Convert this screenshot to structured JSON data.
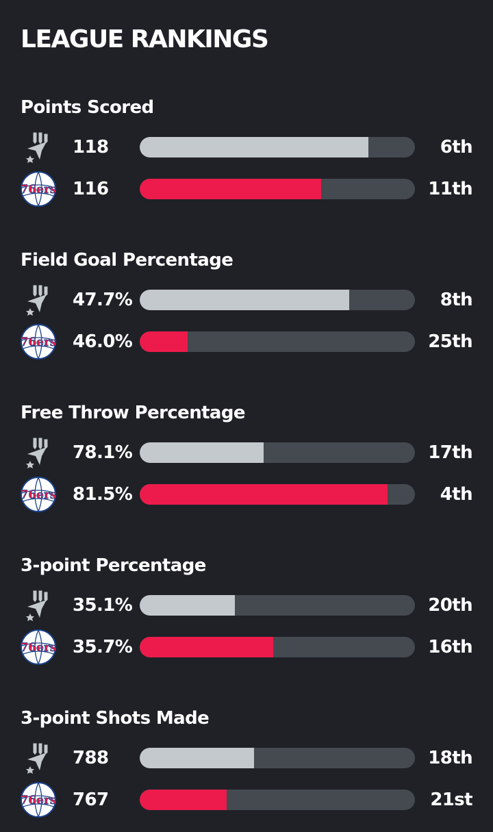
{
  "page": {
    "title": "LEAGUE RANKINGS"
  },
  "teams": {
    "spurs": {
      "logo_icon": "spurs-logo-icon",
      "color": "#c4c9ce"
    },
    "sixers": {
      "logo_icon": "76ers-logo-icon",
      "logo_text": "76ers",
      "color": "#ec1b4b"
    }
  },
  "colors": {
    "background": "#1f2127",
    "track": "#454950",
    "spurs_bar": "#c4c9ce",
    "sixers_bar": "#ec1b4b"
  },
  "stats": [
    {
      "title": "Points Scored",
      "spurs": {
        "value": "118",
        "rank": "6th",
        "fill": 0.83
      },
      "sixers": {
        "value": "116",
        "rank": "11th",
        "fill": 0.66
      }
    },
    {
      "title": "Field Goal Percentage",
      "spurs": {
        "value": "47.7%",
        "rank": "8th",
        "fill": 0.76
      },
      "sixers": {
        "value": "46.0%",
        "rank": "25th",
        "fill": 0.175
      }
    },
    {
      "title": "Free Throw Percentage",
      "spurs": {
        "value": "78.1%",
        "rank": "17th",
        "fill": 0.45
      },
      "sixers": {
        "value": "81.5%",
        "rank": "4th",
        "fill": 0.9
      }
    },
    {
      "title": "3-point Percentage",
      "spurs": {
        "value": "35.1%",
        "rank": "20th",
        "fill": 0.345
      },
      "sixers": {
        "value": "35.7%",
        "rank": "16th",
        "fill": 0.485
      }
    },
    {
      "title": "3-point Shots Made",
      "spurs": {
        "value": "788",
        "rank": "18th",
        "fill": 0.415
      },
      "sixers": {
        "value": "767",
        "rank": "21st",
        "fill": 0.315
      }
    }
  ]
}
